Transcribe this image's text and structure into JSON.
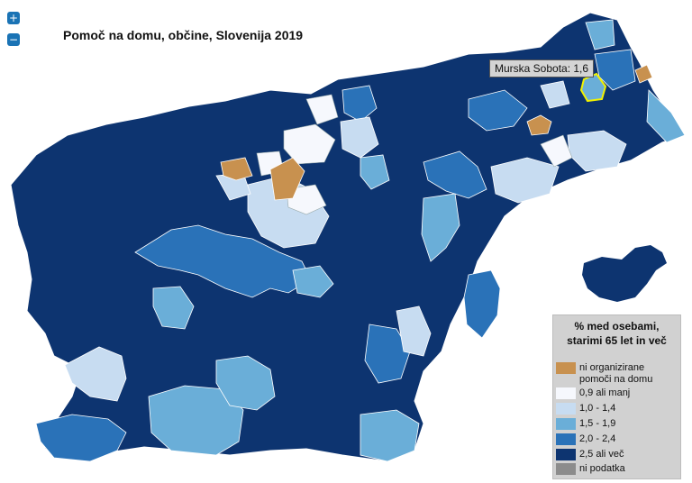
{
  "title": "Pomoč na domu, občine, Slovenija 2019",
  "controls": {
    "zoom_in": "+",
    "zoom_out": "−"
  },
  "tooltip": {
    "text": "Murska Sobota: 1,6"
  },
  "legend": {
    "title_line1": "% med osebami,",
    "title_line2": "starimi 65 let in več",
    "items": [
      {
        "label": "ni organizirane pomoči na domu",
        "color": "#c8914f"
      },
      {
        "label": "0,9 ali manj",
        "color": "#f6f8fd"
      },
      {
        "label": "1,0 - 1,4",
        "color": "#c7dcf1"
      },
      {
        "label": "1,5 - 1,9",
        "color": "#6aaed8"
      },
      {
        "label": "2,0 - 2,4",
        "color": "#2a72b8"
      },
      {
        "label": "2,5 ali več",
        "color": "#0d3470"
      },
      {
        "label": "ni podatka",
        "color": "#8c8c8c"
      }
    ]
  },
  "map": {
    "country": "Slovenija",
    "highlighted_municipality": "Murska Sobota",
    "highlighted_value": 1.6
  }
}
